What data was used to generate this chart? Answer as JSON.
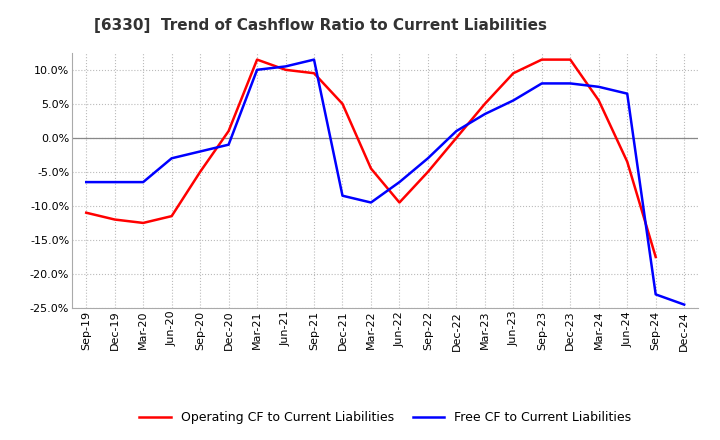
{
  "title": "[6330]  Trend of Cashflow Ratio to Current Liabilities",
  "x_labels": [
    "Sep-19",
    "Dec-19",
    "Mar-20",
    "Jun-20",
    "Sep-20",
    "Dec-20",
    "Mar-21",
    "Jun-21",
    "Sep-21",
    "Dec-21",
    "Mar-22",
    "Jun-22",
    "Sep-22",
    "Dec-22",
    "Mar-23",
    "Jun-23",
    "Sep-23",
    "Dec-23",
    "Mar-24",
    "Jun-24",
    "Sep-24",
    "Dec-24"
  ],
  "operating_cf": [
    -11.0,
    -12.0,
    -12.5,
    -11.5,
    -5.0,
    1.0,
    11.5,
    10.0,
    9.5,
    5.0,
    -4.5,
    -9.5,
    -5.0,
    0.0,
    5.0,
    9.5,
    11.5,
    11.5,
    5.5,
    -3.5,
    -17.5,
    null
  ],
  "free_cf": [
    -6.5,
    -6.5,
    -6.5,
    -3.0,
    -2.0,
    -1.0,
    10.0,
    10.5,
    11.5,
    -8.5,
    -9.5,
    -6.5,
    -3.0,
    1.0,
    3.5,
    5.5,
    8.0,
    8.0,
    7.5,
    6.5,
    -23.0,
    -24.5
  ],
  "ylim": [
    -25.0,
    12.5
  ],
  "yticks": [
    -25.0,
    -20.0,
    -15.0,
    -10.0,
    -5.0,
    0.0,
    5.0,
    10.0
  ],
  "operating_color": "#ff0000",
  "free_color": "#0000ff",
  "background_color": "#ffffff",
  "grid_color": "#bbbbbb",
  "legend_operating": "Operating CF to Current Liabilities",
  "legend_free": "Free CF to Current Liabilities",
  "title_fontsize": 11,
  "axis_fontsize": 8,
  "legend_fontsize": 9
}
